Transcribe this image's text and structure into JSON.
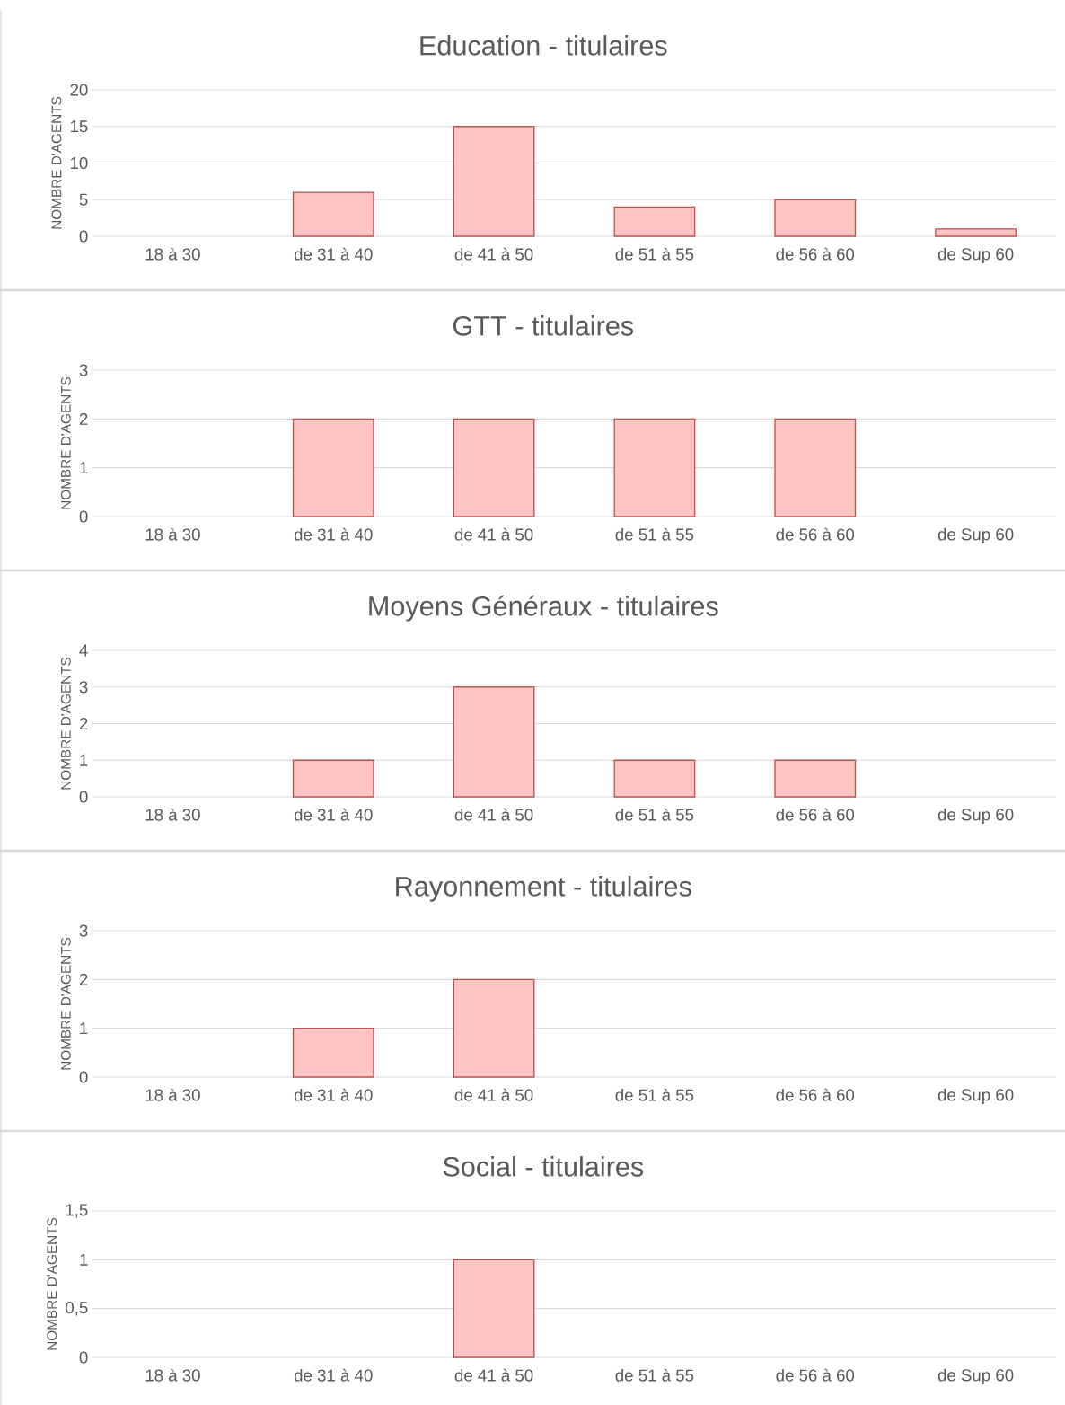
{
  "chart_data": [
    {
      "type": "bar",
      "title": "Education - titulaires",
      "ylabel": "NOMBRE D'AGENTS",
      "categories": [
        "18 à 30",
        "de 31 à 40",
        "de 41 à 50",
        "de 51 à 55",
        "de 56 à 60",
        "de Sup 60"
      ],
      "values": [
        null,
        6,
        15,
        4,
        5,
        1
      ],
      "color": "#ffc4c4",
      "ylim": [
        0,
        20
      ],
      "yticks": [
        0,
        5,
        10,
        15,
        20
      ],
      "grid": "y"
    },
    {
      "type": "bar",
      "title": "GTT - titulaires",
      "ylabel": "NOMBRE D'AGENTS",
      "categories": [
        "18 à 30",
        "de 31 à 40",
        "de 41 à 50",
        "de 51 à 55",
        "de 56 à 60",
        "de Sup 60"
      ],
      "values": [
        null,
        2,
        2,
        2,
        2,
        null
      ],
      "color": "#ffc4c4",
      "ylim": [
        0,
        3
      ],
      "yticks": [
        0,
        1,
        2,
        3
      ],
      "grid": "y"
    },
    {
      "type": "bar",
      "title": "Moyens Généraux - titulaires",
      "ylabel": "NOMBRE D'AGENTS",
      "categories": [
        "18 à 30",
        "de 31 à 40",
        "de 41 à 50",
        "de 51 à 55",
        "de 56 à 60",
        "de Sup 60"
      ],
      "values": [
        null,
        1,
        3,
        1,
        1,
        null
      ],
      "color": "#ffc4c4",
      "ylim": [
        0,
        4
      ],
      "yticks": [
        0,
        1,
        2,
        3,
        4
      ],
      "grid": "y"
    },
    {
      "type": "bar",
      "title": "Rayonnement - titulaires",
      "ylabel": "NOMBRE D'AGENTS",
      "categories": [
        "18 à 30",
        "de 31 à 40",
        "de 41 à 50",
        "de 51 à 55",
        "de 56 à 60",
        "de Sup 60"
      ],
      "values": [
        null,
        1,
        2,
        null,
        null,
        null
      ],
      "color": "#ffc4c4",
      "ylim": [
        0,
        3
      ],
      "yticks": [
        0,
        1,
        2,
        3
      ],
      "grid": "y"
    },
    {
      "type": "bar",
      "title": "Social - titulaires",
      "ylabel": "NOMBRE D'AGENTS",
      "categories": [
        "18 à 30",
        "de 31 à 40",
        "de 41 à 50",
        "de 51 à 55",
        "de 56 à 60",
        "de Sup 60"
      ],
      "values": [
        null,
        null,
        1,
        null,
        null,
        null
      ],
      "color": "#ffc4c4",
      "ylim": [
        0,
        1.5
      ],
      "yticks": [
        0,
        {
          "value": 0.5,
          "label": "0,5"
        },
        1,
        {
          "value": 1.5,
          "label": "1,5"
        }
      ],
      "grid": "y"
    }
  ]
}
